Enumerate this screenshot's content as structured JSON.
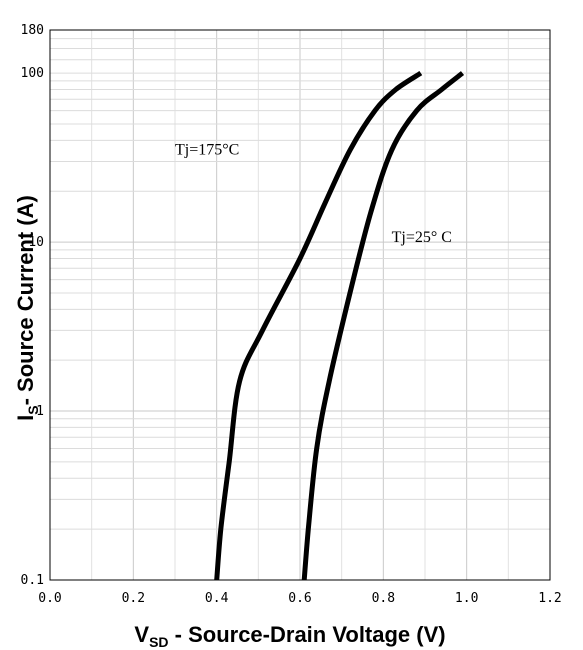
{
  "chart_data": {
    "type": "line",
    "xlabel": "V_SD - Source-Drain Voltage (V)",
    "xlabel_main": "V",
    "xlabel_sub": "SD",
    "xlabel_rest": " - Source-Drain Voltage (V)",
    "ylabel": "I_S - Source Current (A)",
    "ylabel_main": "I",
    "ylabel_sub": "S",
    "ylabel_rest": "- Source Current (A)",
    "x_ticks": [
      "0.0",
      "0.2",
      "0.4",
      "0.6",
      "0.8",
      "1.0",
      "1.2"
    ],
    "y_ticks": [
      "0.1",
      "1",
      "10",
      "100",
      "180"
    ],
    "xlim": [
      0,
      1.2
    ],
    "ylim": [
      0.1,
      180
    ],
    "y_scale": "log",
    "grid": true,
    "annotations": [
      "Tj=175°C",
      "Tj=25° C"
    ],
    "series": [
      {
        "name": "Tj=175°C",
        "color": "#000000",
        "x": [
          0.4,
          0.41,
          0.43,
          0.455,
          0.51,
          0.6,
          0.66,
          0.72,
          0.78,
          0.83,
          0.89
        ],
        "y": [
          0.1,
          0.2,
          0.5,
          1.5,
          3,
          8,
          17,
          35,
          60,
          80,
          100
        ]
      },
      {
        "name": "Tj=25° C",
        "color": "#000000",
        "x": [
          0.61,
          0.62,
          0.64,
          0.67,
          0.72,
          0.77,
          0.82,
          0.88,
          0.94,
          0.99
        ],
        "y": [
          0.1,
          0.2,
          0.6,
          1.5,
          5,
          15,
          35,
          60,
          80,
          100
        ]
      }
    ]
  }
}
